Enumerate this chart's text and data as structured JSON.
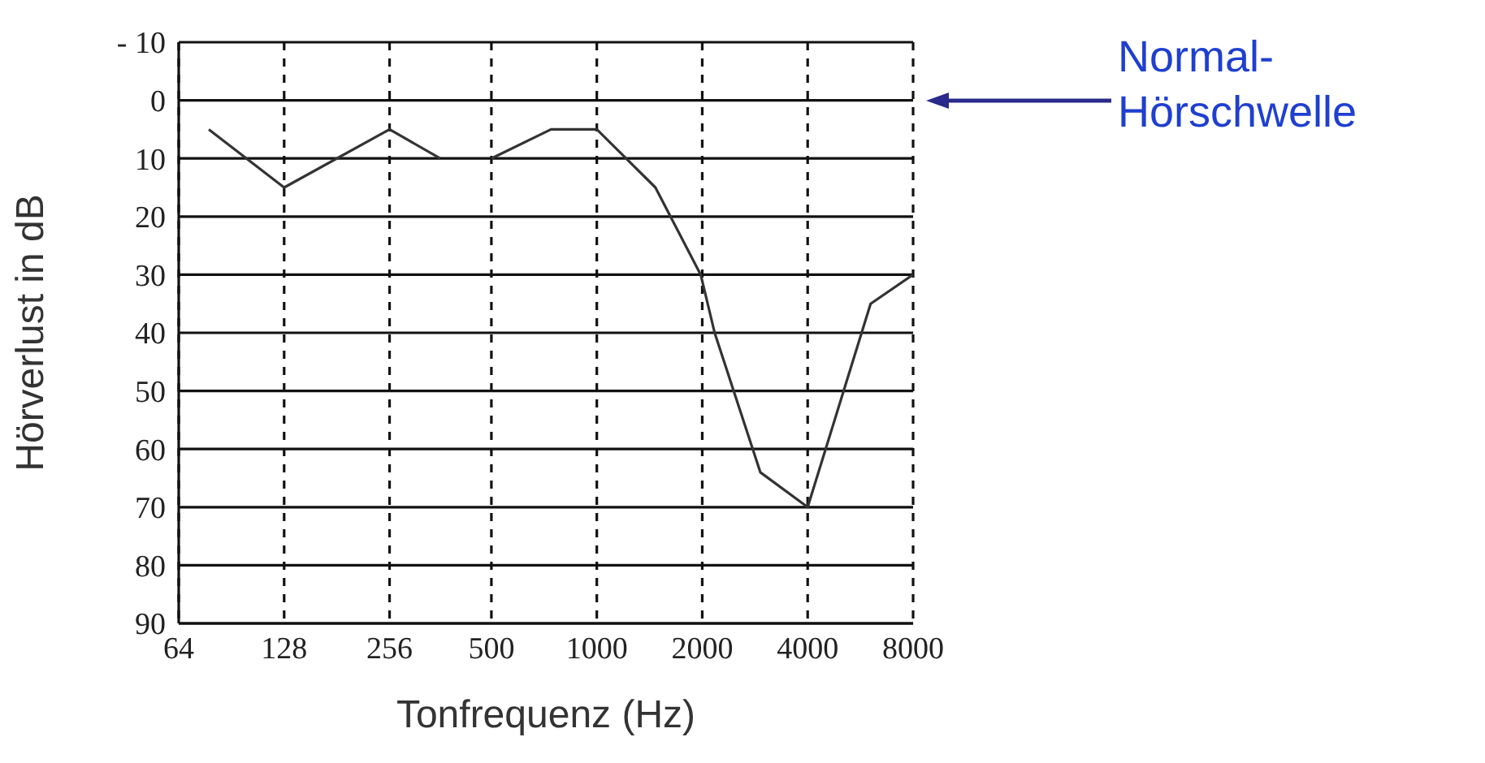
{
  "chart_data": {
    "type": "line",
    "xlabel": "Tonfrequenz (Hz)",
    "ylabel": "Hörverlust in dB",
    "log": "x",
    "xlim": [
      64,
      8000
    ],
    "xticks": [
      64,
      128,
      256,
      500,
      1000,
      2000,
      4000,
      8000
    ],
    "ylim": [
      90,
      -10
    ],
    "yticks": [
      {
        "value": -10,
        "label": "- 10"
      },
      0,
      10,
      20,
      30,
      40,
      50,
      60,
      70,
      80,
      90
    ],
    "grid": true,
    "marker": "none",
    "line_style": "solid",
    "series": [
      {
        "color": "#333333",
        "x": [
          78,
          128,
          256,
          357
        ],
        "values": [
          5,
          15,
          5,
          10
        ]
      },
      {
        "color": "#333333",
        "x": [
          500,
          740,
          1000,
          1470,
          1980,
          2170,
          2930,
          4000,
          6050,
          8000
        ],
        "values": [
          10,
          5,
          5,
          15,
          30,
          40,
          64,
          70,
          35,
          30
        ]
      }
    ],
    "annotations": [
      "Normal-Hörschwelle"
    ]
  }
}
